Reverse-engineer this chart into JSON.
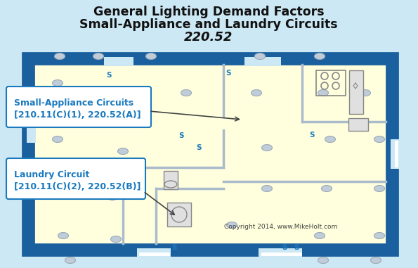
{
  "title_line1": "General Lighting Demand Factors",
  "title_line2": "Small-Appliance and Laundry Circuits",
  "title_line3": "220.52",
  "bg_color": "#cce8f4",
  "floor_fill": "#ffffdd",
  "wall_color": "#1a5f9e",
  "interior_wall_color": "#aabbcc",
  "label1_text1": "Small-Appliance Circuits",
  "label1_text2": "[210.11(C)(1), 220.52(A)]",
  "label2_text1": "Laundry Circuit",
  "label2_text2": "[210.11(C)(2), 220.52(B)]",
  "label_color": "#1a7abf",
  "copyright": "Copyright 2014, www.MikeHolt.com",
  "title_color": "#111111",
  "fixture_color": "#c0cdd8",
  "fixture_edge": "#9aaabb",
  "appliance_fill": "#e0e0e0",
  "appliance_edge": "#888888"
}
